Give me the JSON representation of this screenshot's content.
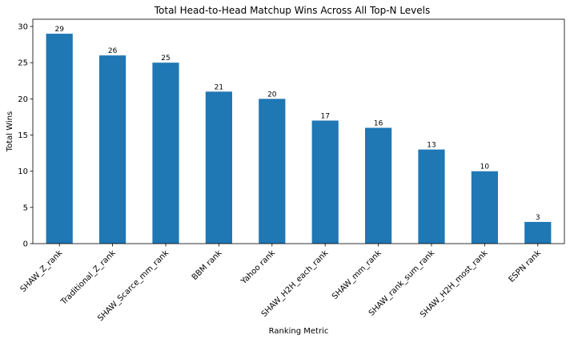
{
  "chart_data": {
    "type": "bar",
    "title": "Total Head-to-Head Matchup Wins Across All Top-N Levels",
    "xlabel": "Ranking Metric",
    "ylabel": "Total Wins",
    "categories": [
      "SHAW_Z_rank",
      "Traditional_Z_rank",
      "SHAW_Scarce_mm_rank",
      "BBM rank",
      "Yahoo rank",
      "SHAW_H2H_each_rank",
      "SHAW_mm_rank",
      "SHAW_rank_sum_rank",
      "SHAW_H2H_most_rank",
      "ESPN rank"
    ],
    "values": [
      29,
      26,
      25,
      21,
      20,
      17,
      16,
      13,
      10,
      3
    ],
    "ylim": [
      0,
      31
    ],
    "yticks": [
      0,
      5,
      10,
      15,
      20,
      25,
      30
    ],
    "grid": false,
    "bar_color": "#1f77b4"
  }
}
